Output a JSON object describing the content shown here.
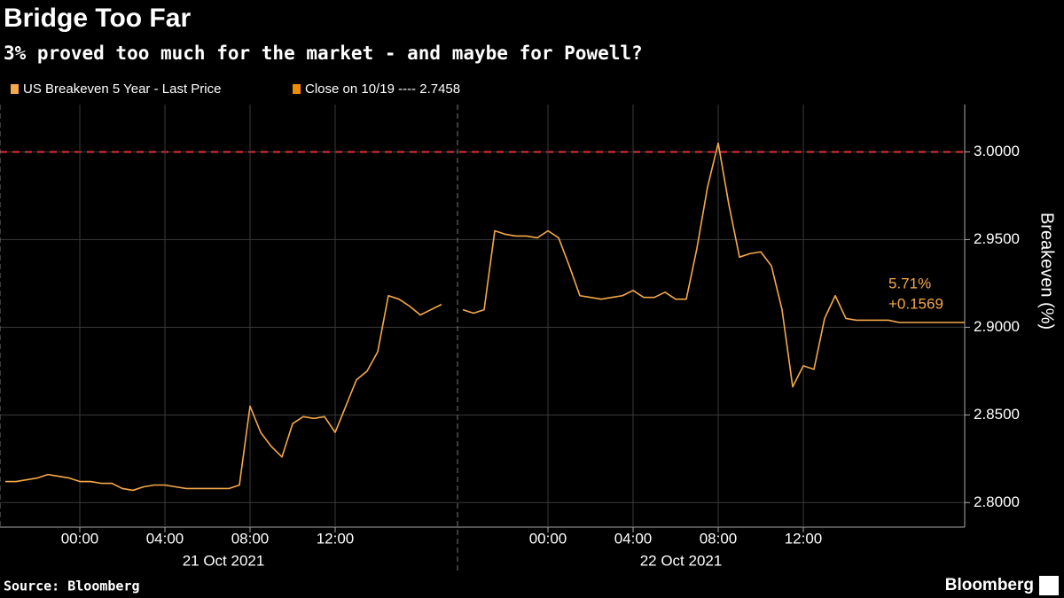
{
  "chart_data": {
    "type": "line",
    "title": "Bridge Too Far",
    "subtitle": "3% proved too much for the market - and maybe for Powell?",
    "series": [
      {
        "name": "US Breakeven 5 Year - Last Price",
        "color": "#f5a94a"
      }
    ],
    "close_legend": {
      "label": "Close on 10/19 ---- 2.7458",
      "color": "#f08c00"
    },
    "threshold": {
      "value": 3.0,
      "color": "#e0303c"
    },
    "last_labels": [
      "5.71%",
      "+0.1569"
    ],
    "sessions": [
      {
        "date": "21 Oct 2021",
        "x": [
          "20:30",
          "21:00",
          "21:30",
          "22:00",
          "22:30",
          "23:00",
          "23:30",
          "00:00",
          "00:30",
          "01:00",
          "01:30",
          "02:00",
          "02:30",
          "03:00",
          "03:30",
          "04:00",
          "04:30",
          "05:00",
          "05:30",
          "06:00",
          "06:30",
          "07:00",
          "07:30",
          "08:00",
          "08:30",
          "09:00",
          "09:30",
          "10:00",
          "10:30",
          "11:00",
          "11:30",
          "12:00",
          "12:30",
          "13:00",
          "13:30",
          "14:00",
          "14:30",
          "15:00",
          "15:30",
          "16:00",
          "16:30",
          "17:00"
        ],
        "values": [
          2.812,
          2.812,
          2.813,
          2.814,
          2.816,
          2.815,
          2.814,
          2.812,
          2.812,
          2.811,
          2.811,
          2.808,
          2.807,
          2.809,
          2.81,
          2.81,
          2.809,
          2.808,
          2.808,
          2.808,
          2.808,
          2.808,
          2.81,
          2.855,
          2.84,
          2.832,
          2.826,
          2.845,
          2.849,
          2.848,
          2.849,
          2.84,
          2.855,
          2.87,
          2.875,
          2.886,
          2.918,
          2.916,
          2.912,
          2.907,
          2.91,
          2.913
        ],
        "xticks": [
          "00:00",
          "04:00",
          "08:00",
          "12:00"
        ]
      },
      {
        "date": "22 Oct 2021",
        "x": [
          "20:00",
          "20:30",
          "21:00",
          "21:30",
          "22:00",
          "22:30",
          "23:00",
          "23:30",
          "00:00",
          "00:30",
          "01:00",
          "01:30",
          "02:00",
          "02:30",
          "03:00",
          "03:30",
          "04:00",
          "04:30",
          "05:00",
          "05:30",
          "06:00",
          "06:30",
          "07:00",
          "07:30",
          "08:00",
          "08:30",
          "09:00",
          "09:30",
          "10:00",
          "10:30",
          "11:00",
          "11:30",
          "12:00",
          "12:30",
          "13:00",
          "13:30",
          "14:00",
          "14:30",
          "15:00",
          "15:30",
          "16:00",
          "16:30"
        ],
        "values": [
          2.91,
          2.908,
          2.91,
          2.955,
          2.953,
          2.952,
          2.952,
          2.951,
          2.955,
          2.951,
          2.935,
          2.918,
          2.917,
          2.916,
          2.917,
          2.918,
          2.921,
          2.917,
          2.917,
          2.92,
          2.916,
          2.916,
          2.945,
          2.98,
          3.005,
          2.97,
          2.94,
          2.942,
          2.943,
          2.935,
          2.91,
          2.866,
          2.878,
          2.876,
          2.905,
          2.918,
          2.905,
          2.904,
          2.904,
          2.904,
          2.904,
          2.9027
        ],
        "xticks": [
          "00:00",
          "04:00",
          "08:00",
          "12:00"
        ]
      }
    ],
    "ylim": [
      2.786,
      3.027
    ],
    "yticks": [
      {
        "value": 2.8,
        "label": "2.8000"
      },
      {
        "value": 2.85,
        "label": "2.8500"
      },
      {
        "value": 2.9,
        "label": "2.9000"
      },
      {
        "value": 2.95,
        "label": "2.9500"
      },
      {
        "value": 3.0,
        "label": "3.0000"
      }
    ],
    "ylabel": "Breakeven (%)",
    "grid": true,
    "source": "Source: Bloomberg",
    "brand": "Bloomberg"
  }
}
